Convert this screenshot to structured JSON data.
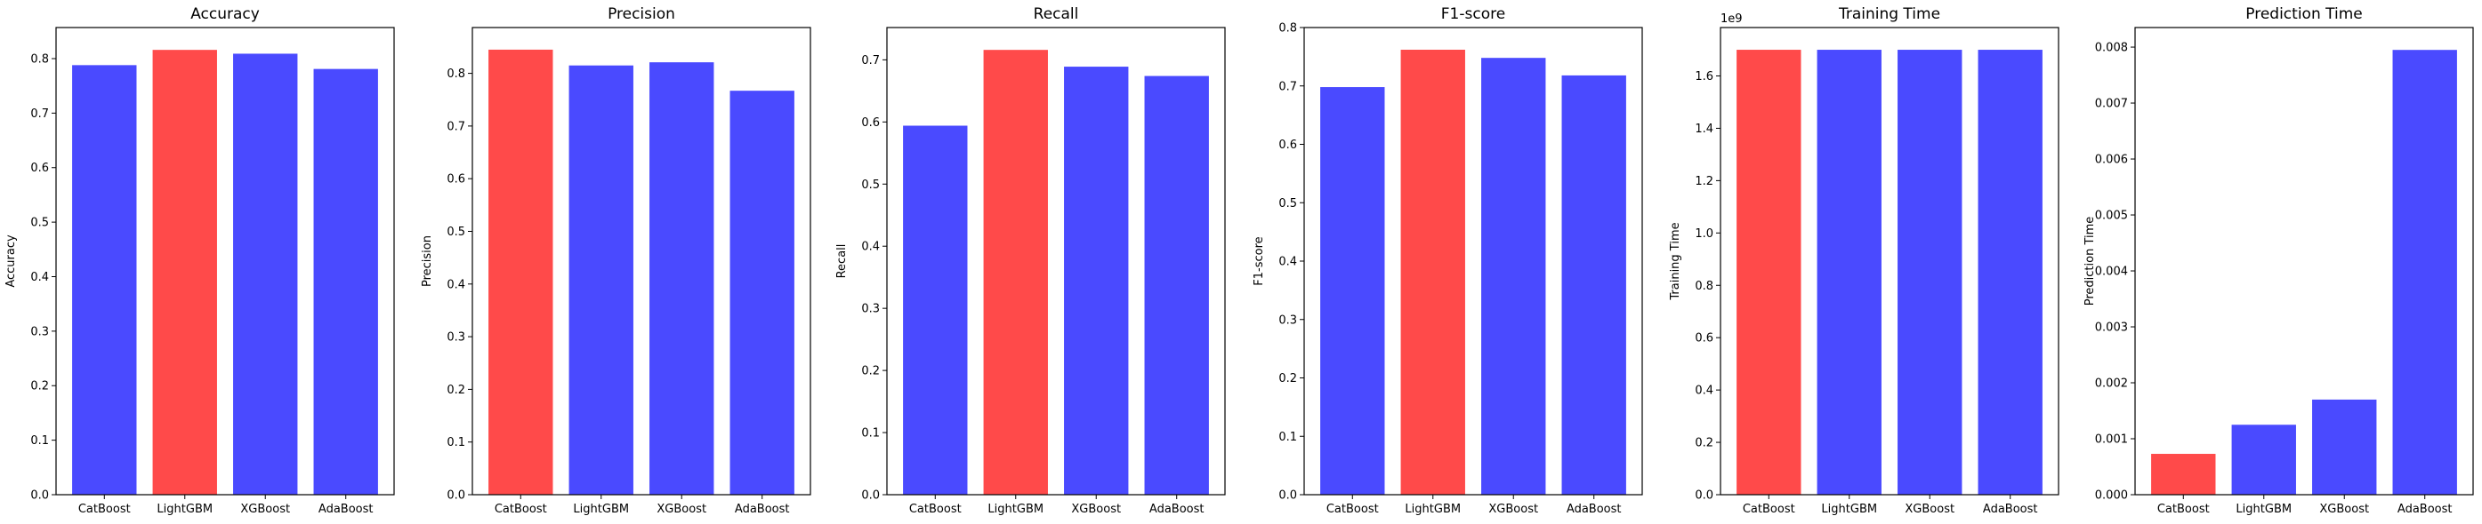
{
  "colors": {
    "default_bar": "#4a4aff",
    "best_bar": "#ff4a4a"
  },
  "chart_data": [
    {
      "type": "bar",
      "title": "Accuracy",
      "ylabel": "Accuracy",
      "categories": [
        "CatBoost",
        "LightGBM",
        "XGBoost",
        "AdaBoost"
      ],
      "values": [
        0.788,
        0.816,
        0.809,
        0.781
      ],
      "highlight": "LightGBM",
      "ylim": [
        0,
        0.857
      ],
      "yticks": [
        0.0,
        0.1,
        0.2,
        0.3,
        0.4,
        0.5,
        0.6,
        0.7,
        0.8
      ],
      "ytick_labels": [
        "0.0",
        "0.1",
        "0.2",
        "0.3",
        "0.4",
        "0.5",
        "0.6",
        "0.7",
        "0.8"
      ],
      "offset_label": ""
    },
    {
      "type": "bar",
      "title": "Precision",
      "ylabel": "Precision",
      "categories": [
        "CatBoost",
        "LightGBM",
        "XGBoost",
        "AdaBoost"
      ],
      "values": [
        0.845,
        0.815,
        0.821,
        0.767
      ],
      "highlight": "CatBoost",
      "ylim": [
        0,
        0.887
      ],
      "yticks": [
        0.0,
        0.1,
        0.2,
        0.3,
        0.4,
        0.5,
        0.6,
        0.7,
        0.8
      ],
      "ytick_labels": [
        "0.0",
        "0.1",
        "0.2",
        "0.3",
        "0.4",
        "0.5",
        "0.6",
        "0.7",
        "0.8"
      ],
      "offset_label": ""
    },
    {
      "type": "bar",
      "title": "Recall",
      "ylabel": "Recall",
      "categories": [
        "CatBoost",
        "LightGBM",
        "XGBoost",
        "AdaBoost"
      ],
      "values": [
        0.594,
        0.716,
        0.689,
        0.674
      ],
      "highlight": "LightGBM",
      "ylim": [
        0,
        0.752
      ],
      "yticks": [
        0.0,
        0.1,
        0.2,
        0.3,
        0.4,
        0.5,
        0.6,
        0.7
      ],
      "ytick_labels": [
        "0.0",
        "0.1",
        "0.2",
        "0.3",
        "0.4",
        "0.5",
        "0.6",
        "0.7"
      ],
      "offset_label": ""
    },
    {
      "type": "bar",
      "title": "F1-score",
      "ylabel": "F1-score",
      "categories": [
        "CatBoost",
        "LightGBM",
        "XGBoost",
        "AdaBoost"
      ],
      "values": [
        0.698,
        0.762,
        0.748,
        0.718
      ],
      "highlight": "LightGBM",
      "ylim": [
        0,
        0.8
      ],
      "yticks": [
        0.0,
        0.1,
        0.2,
        0.3,
        0.4,
        0.5,
        0.6,
        0.7,
        0.8
      ],
      "ytick_labels": [
        "0.0",
        "0.1",
        "0.2",
        "0.3",
        "0.4",
        "0.5",
        "0.6",
        "0.7",
        "0.8"
      ],
      "offset_label": ""
    },
    {
      "type": "bar",
      "title": "Training Time",
      "ylabel": "Training Time",
      "categories": [
        "CatBoost",
        "LightGBM",
        "XGBoost",
        "AdaBoost"
      ],
      "values": [
        1700000000.0,
        1700000000.0,
        1700000000.0,
        1700000000.0
      ],
      "highlight": "CatBoost",
      "ylim": [
        0,
        1785000000.0
      ],
      "yticks": [
        0,
        200000000.0,
        400000000.0,
        600000000.0,
        800000000.0,
        1000000000.0,
        1200000000.0,
        1400000000.0,
        1600000000.0
      ],
      "ytick_labels": [
        "0.0",
        "0.2",
        "0.4",
        "0.6",
        "0.8",
        "1.0",
        "1.2",
        "1.4",
        "1.6"
      ],
      "offset_label": "1e9"
    },
    {
      "type": "bar",
      "title": "Prediction Time",
      "ylabel": "Prediction Time",
      "categories": [
        "CatBoost",
        "LightGBM",
        "XGBoost",
        "AdaBoost"
      ],
      "values": [
        0.00073,
        0.00125,
        0.0017,
        0.00795
      ],
      "highlight": "CatBoost",
      "ylim": [
        0,
        0.00835
      ],
      "yticks": [
        0,
        0.001,
        0.002,
        0.003,
        0.004,
        0.005,
        0.006,
        0.007,
        0.008
      ],
      "ytick_labels": [
        "0.000",
        "0.001",
        "0.002",
        "0.003",
        "0.004",
        "0.005",
        "0.006",
        "0.007",
        "0.008"
      ],
      "offset_label": ""
    }
  ]
}
